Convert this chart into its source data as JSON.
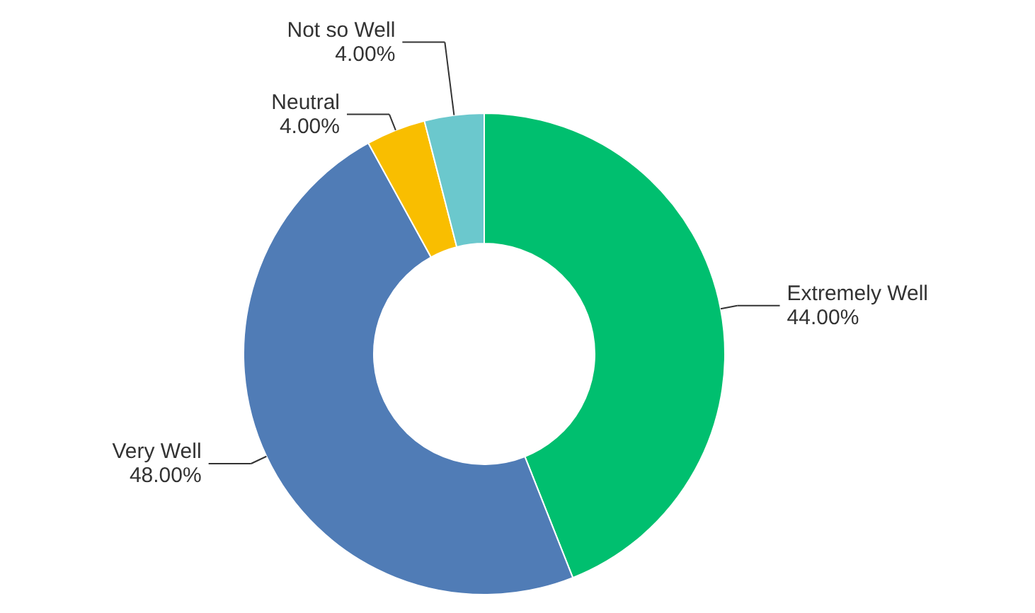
{
  "chart_data": {
    "type": "donut",
    "categories": [
      "Extremely Well",
      "Very Well",
      "Neutral",
      "Not so Well"
    ],
    "values": [
      44,
      48,
      4,
      4
    ],
    "colors": [
      "#00bf6f",
      "#507cb6",
      "#f9be00",
      "#6bc8cd"
    ],
    "value_labels": [
      "44.00%",
      "48.00%",
      "4.00%",
      "4.00%"
    ]
  }
}
